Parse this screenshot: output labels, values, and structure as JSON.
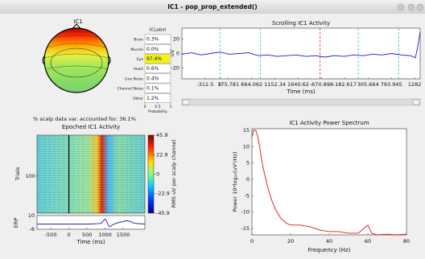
{
  "window_title": "IC1 - pop_prop_extended()",
  "topoplot": {
    "title": "IC1"
  },
  "variance_text": "% scalp data var. accounted for: 36.1%",
  "chart_data": [
    {
      "type": "barh",
      "title": "ICLabel",
      "categories": [
        "Brain",
        "Muscle",
        "Eye",
        "Heart",
        "Line Noise",
        "Channel Noise",
        "Other"
      ],
      "values": [
        0.003,
        0,
        0.974,
        0.006,
        0.004,
        0.001,
        0.012
      ],
      "value_labels": [
        "0.3%",
        "0.0%",
        "97.4%",
        "0.6%",
        "0.4%",
        "0.1%",
        "1.2%"
      ],
      "color": "#f2f21a",
      "xlim": [
        0,
        1
      ],
      "xticks": [
        0,
        0.5,
        1
      ],
      "xlabel": "Probability"
    },
    {
      "type": "line",
      "title": "Scrolling IC1 Activity",
      "ylabel": "uV",
      "xlabel": "Time (ms)",
      "color": "#1a1ae0",
      "x": [
        -800,
        -600,
        -400,
        -200,
        0,
        200,
        400,
        600,
        800,
        1000,
        1200,
        1400,
        1600,
        1800,
        2000,
        2200,
        2400,
        2600,
        2800,
        3000,
        3200,
        3400,
        3600,
        3800,
        4000,
        4100,
        4150,
        4200
      ],
      "values": [
        -1,
        1,
        -2,
        0,
        2,
        -1,
        0,
        1,
        -3,
        -2,
        -4,
        -3,
        -2,
        -4,
        -3,
        -5,
        -3,
        -4,
        -2,
        -3,
        -1,
        -2,
        0,
        -2,
        -3,
        -6,
        10,
        30
      ],
      "xlim": [
        -800,
        4200
      ],
      "ylim": [
        -35,
        35
      ],
      "yticks": [
        20,
        0,
        -20
      ],
      "xticks": [
        -312.5,
        0,
        175.781,
        664.062,
        1152.34,
        1640.62,
        {
          "value": 2130,
          "label": "-670.898"
        },
        {
          "value": 2618,
          "label": "-182.617"
        },
        {
          "value": 3106,
          "label": "305.664"
        },
        {
          "value": 3595,
          "label": "793.945"
        },
        {
          "value": 4083,
          "label": "1282"
        }
      ],
      "event_x": [
        0,
        850,
        2100,
        2900,
        3750
      ],
      "event_colors": [
        "#2ac3d0",
        "#2ac3d0",
        "#e02020",
        "#2ac3d0",
        "#2ac3d0"
      ]
    },
    {
      "type": "image",
      "title": "Epoched IC1 Activity",
      "ylabel": "Trials",
      "ylim": [
        0,
        210
      ],
      "yticks": [
        100
      ],
      "clim": [
        -45.9,
        45.9
      ],
      "cticks": [
        45.9,
        22.9,
        0,
        -22.9,
        -45.9
      ],
      "clabel": "RMS uV per scalp channel"
    },
    {
      "type": "line",
      "ylabel": "ERP",
      "xlabel": "Time (ms)",
      "color": "#1a1ab0",
      "x": [
        -880,
        -500,
        0,
        500,
        800,
        900,
        950,
        1000,
        1050,
        1100,
        1150,
        1200,
        1300,
        1400,
        1500,
        1600,
        1700,
        1800,
        2100
      ],
      "values": [
        0,
        0,
        0,
        0,
        0.5,
        1,
        4,
        6,
        3,
        -2,
        -3,
        -1,
        1,
        2,
        3,
        4,
        3,
        1,
        0
      ],
      "xlim": [
        -880,
        2100
      ],
      "xticks": [
        -500,
        0,
        500,
        1000,
        1500
      ],
      "ylim": [
        -6,
        10
      ],
      "yticks": [
        10,
        -6
      ]
    },
    {
      "type": "line",
      "title": "IC1 Activity Power Spectrum",
      "xlabel": "Frequency (Hz)",
      "ylabel": "Power 10*log₁₀(uV²/Hz)",
      "color": "#e01010",
      "x": [
        0,
        1,
        2,
        3,
        4,
        5,
        6,
        8,
        10,
        12,
        15,
        18,
        20,
        25,
        30,
        35,
        40,
        45,
        50,
        55,
        58,
        60,
        62,
        65,
        70,
        75,
        80
      ],
      "values": [
        13,
        15,
        15,
        13,
        10,
        6,
        3,
        -2,
        -6,
        -9,
        -12,
        -13.5,
        -14,
        -14,
        -14.5,
        -15.5,
        -16,
        -16,
        -16.5,
        -16.5,
        -15,
        -14,
        -16.5,
        -17,
        -16.8,
        -17,
        -16.8
      ],
      "xlim": [
        0,
        80
      ],
      "xticks": [
        0,
        20,
        40,
        60,
        80
      ],
      "ylim": [
        -17,
        15.5
      ],
      "yticks": [
        15,
        10,
        5,
        0,
        -5,
        -10,
        -15
      ]
    }
  ]
}
